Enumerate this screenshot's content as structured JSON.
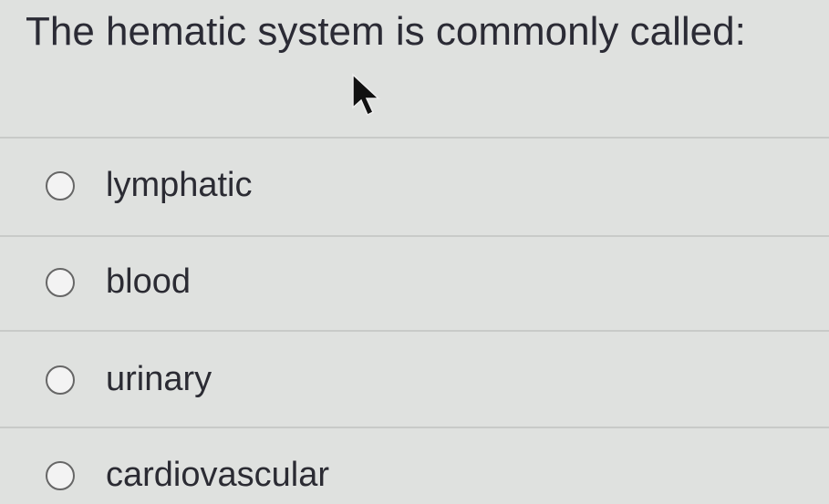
{
  "question": "The hematic system is commonly called:",
  "options": [
    {
      "label": "lymphatic",
      "selected": false
    },
    {
      "label": "blood",
      "selected": false
    },
    {
      "label": "urinary",
      "selected": false
    },
    {
      "label": "cardiovascular",
      "selected": false
    }
  ]
}
